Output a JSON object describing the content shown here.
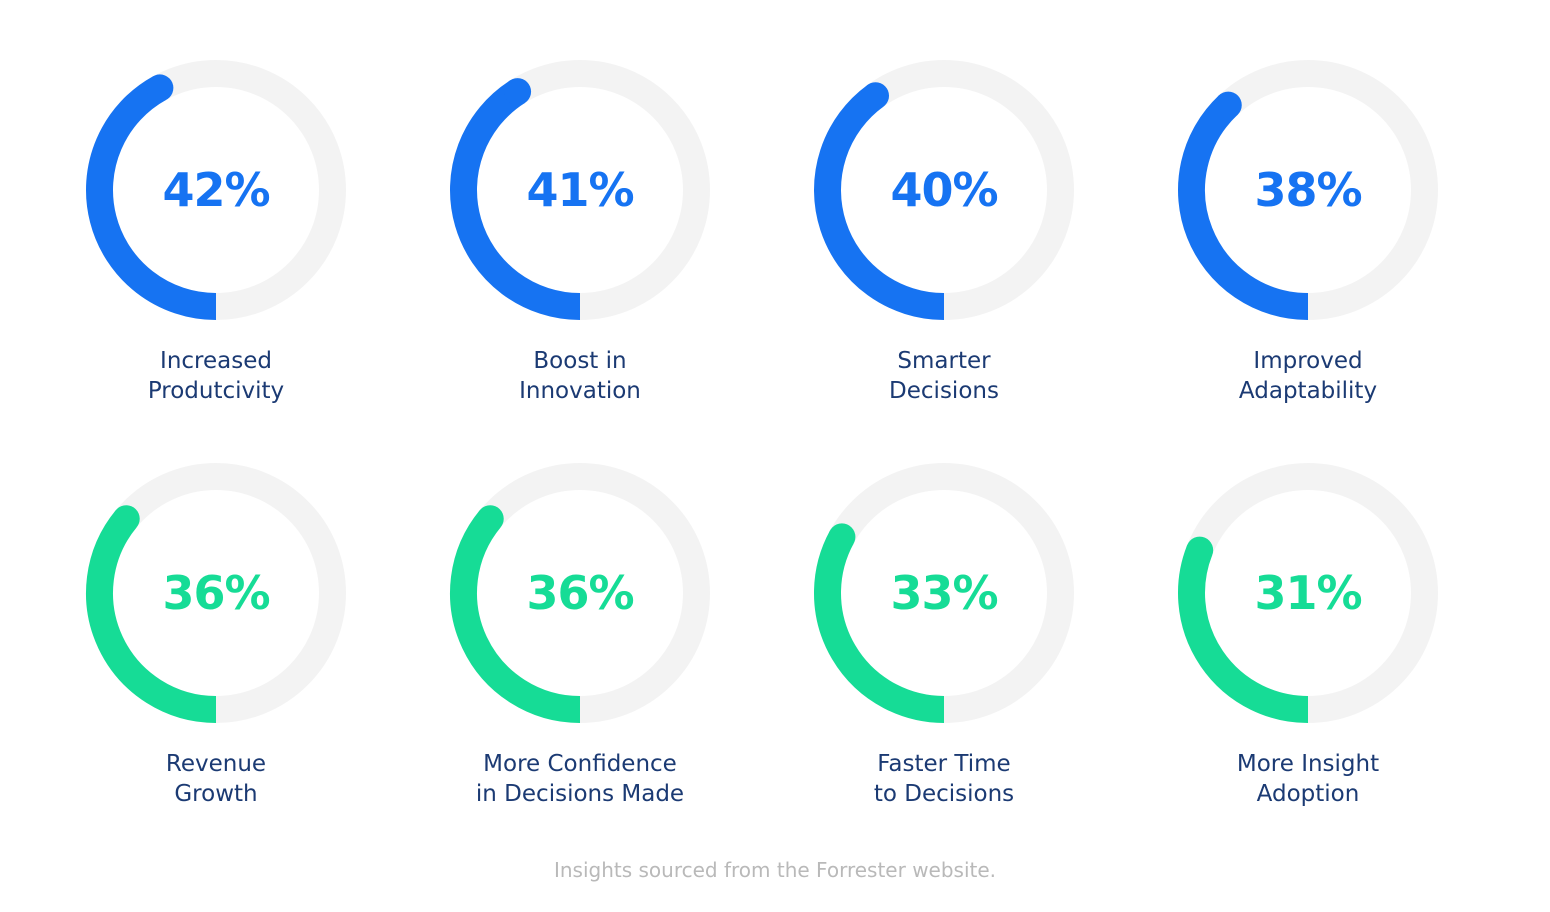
{
  "colors": {
    "blue": "#1673f2",
    "green": "#16dc96",
    "track": "#f3f3f3",
    "label": "#1b3a73",
    "footnote": "#b9b9b9"
  },
  "chart_data": {
    "type": "pie",
    "unit": "%",
    "items": [
      {
        "value": 42,
        "display": "42%",
        "label_lines": [
          "Increased",
          "Produtcivity"
        ],
        "color": "#1673f2"
      },
      {
        "value": 41,
        "display": "41%",
        "label_lines": [
          "Boost in",
          "Innovation"
        ],
        "color": "#1673f2"
      },
      {
        "value": 40,
        "display": "40%",
        "label_lines": [
          "Smarter",
          "Decisions"
        ],
        "color": "#1673f2"
      },
      {
        "value": 38,
        "display": "38%",
        "label_lines": [
          "Improved",
          "Adaptability"
        ],
        "color": "#1673f2"
      },
      {
        "value": 36,
        "display": "36%",
        "label_lines": [
          "Revenue",
          "Growth"
        ],
        "color": "#16dc96"
      },
      {
        "value": 36,
        "display": "36%",
        "label_lines": [
          "More Confidence",
          "in Decisions Made"
        ],
        "color": "#16dc96"
      },
      {
        "value": 33,
        "display": "33%",
        "label_lines": [
          "Faster Time",
          "to Decisions"
        ],
        "color": "#16dc96"
      },
      {
        "value": 31,
        "display": "31%",
        "label_lines": [
          "More Insight",
          "Adoption"
        ],
        "color": "#16dc96"
      }
    ]
  },
  "footnote": "Insights sourced from the Forrester website."
}
